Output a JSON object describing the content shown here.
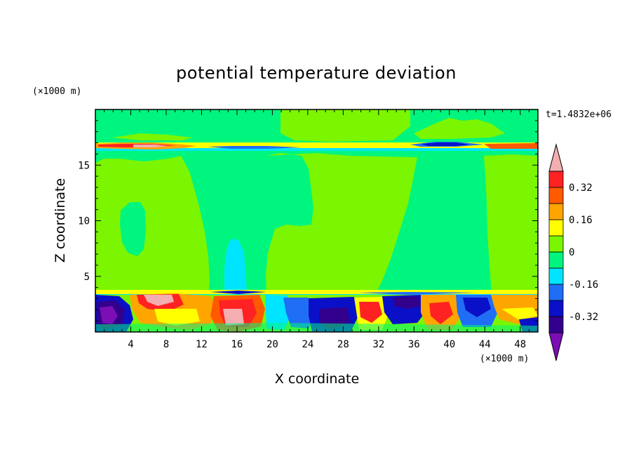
{
  "chart_data": {
    "type": "heatmap",
    "title": "potential temperature deviation",
    "xlabel": "X coordinate",
    "ylabel": "Z coordinate",
    "x_unit": "(×1000 m)",
    "y_unit": "(×1000 m)",
    "time_label": "t=1.4832e+06",
    "xlim": [
      0,
      50
    ],
    "ylim": [
      0,
      20
    ],
    "x_ticks": [
      4,
      8,
      12,
      16,
      20,
      24,
      28,
      32,
      36,
      40,
      44,
      48
    ],
    "y_ticks": [
      5,
      10,
      15
    ],
    "colorbar": {
      "levels": [
        -0.4,
        -0.32,
        -0.24,
        -0.16,
        -0.08,
        0,
        0.08,
        0.16,
        0.24,
        0.32,
        0.4
      ],
      "labels": [
        "-0.32",
        "-0.16",
        "0",
        "0.16",
        "0.32"
      ],
      "label_values": [
        -0.32,
        -0.16,
        0,
        0.16,
        0.32
      ],
      "colors": [
        "#7b0eb5",
        "#32008c",
        "#0a10c8",
        "#1f6ef5",
        "#00e5ff",
        "#00f57e",
        "#7bf500",
        "#ffff00",
        "#ffa500",
        "#ff5a00",
        "#ff2222",
        "#f3aeb1"
      ]
    }
  }
}
